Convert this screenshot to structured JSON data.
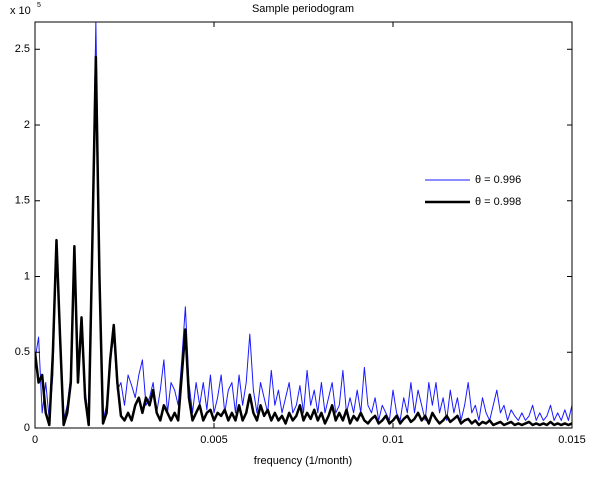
{
  "chart_data": {
    "type": "line",
    "title": "Sample periodogram",
    "y_multiplier": {
      "base": "x 10",
      "exponent": "5"
    },
    "xlabel": "frequency (1/month)",
    "xlim": [
      0,
      0.015
    ],
    "xticks": [
      0,
      0.005,
      0.01,
      0.015
    ],
    "ylim": [
      0,
      2.68
    ],
    "yticks": [
      0,
      0.5,
      1,
      1.5,
      2,
      2.5
    ],
    "grid": false,
    "legend": "right",
    "x": [
      0,
      0.0001,
      0.0002,
      0.0003,
      0.0004,
      0.0005,
      0.0006,
      0.0007,
      0.0008,
      0.0009,
      0.001,
      0.0011,
      0.0012,
      0.0013,
      0.0014,
      0.0015,
      0.0016,
      0.0017,
      0.0018,
      0.0019,
      0.002,
      0.0021,
      0.0022,
      0.0023,
      0.0024,
      0.0025,
      0.0026,
      0.0027,
      0.0028,
      0.0029,
      0.003,
      0.0031,
      0.0032,
      0.0033,
      0.0034,
      0.0035,
      0.0036,
      0.0037,
      0.0038,
      0.0039,
      0.004,
      0.0041,
      0.0042,
      0.0043,
      0.0044,
      0.0045,
      0.0046,
      0.0047,
      0.0048,
      0.0049,
      0.005,
      0.0051,
      0.0052,
      0.0053,
      0.0054,
      0.0055,
      0.0056,
      0.0057,
      0.0058,
      0.0059,
      0.006,
      0.0061,
      0.0062,
      0.0063,
      0.0064,
      0.0065,
      0.0066,
      0.0067,
      0.0068,
      0.0069,
      0.007,
      0.0071,
      0.0072,
      0.0073,
      0.0074,
      0.0075,
      0.0076,
      0.0077,
      0.0078,
      0.0079,
      0.008,
      0.0081,
      0.0082,
      0.0083,
      0.0084,
      0.0085,
      0.0086,
      0.0087,
      0.0088,
      0.0089,
      0.009,
      0.0091,
      0.0092,
      0.0093,
      0.0094,
      0.0095,
      0.0096,
      0.0097,
      0.0098,
      0.0099,
      0.01,
      0.0101,
      0.0102,
      0.0103,
      0.0104,
      0.0105,
      0.0106,
      0.0107,
      0.0108,
      0.0109,
      0.011,
      0.0111,
      0.0112,
      0.0113,
      0.0114,
      0.0115,
      0.0116,
      0.0117,
      0.0118,
      0.0119,
      0.012,
      0.0121,
      0.0122,
      0.0123,
      0.0124,
      0.0125,
      0.0126,
      0.0127,
      0.0128,
      0.0129,
      0.013,
      0.0131,
      0.0132,
      0.0133,
      0.0134,
      0.0135,
      0.0136,
      0.0137,
      0.0138,
      0.0139,
      0.014,
      0.0141,
      0.0142,
      0.0143,
      0.0144,
      0.0145,
      0.0146,
      0.0147,
      0.0148,
      0.0149,
      0.015
    ],
    "series": [
      {
        "name": "θ = 0.996",
        "color": "#1a1aff",
        "width": 1,
        "values": [
          0.45,
          0.6,
          0.1,
          0.3,
          0.05,
          0.35,
          1.2,
          0.55,
          0.05,
          0.15,
          0.35,
          1.15,
          0.35,
          0.7,
          0.25,
          0.05,
          1.3,
          2.68,
          1.1,
          0.05,
          0.15,
          0.45,
          0.6,
          0.25,
          0.3,
          0.15,
          0.35,
          0.28,
          0.2,
          0.35,
          0.45,
          0.15,
          0.2,
          0.3,
          0.1,
          0.25,
          0.45,
          0.1,
          0.3,
          0.25,
          0.15,
          0.45,
          0.8,
          0.3,
          0.1,
          0.3,
          0.15,
          0.3,
          0.12,
          0.35,
          0.1,
          0.2,
          0.35,
          0.1,
          0.25,
          0.3,
          0.1,
          0.35,
          0.15,
          0.3,
          0.62,
          0.25,
          0.1,
          0.3,
          0.2,
          0.1,
          0.38,
          0.15,
          0.25,
          0.1,
          0.2,
          0.3,
          0.1,
          0.15,
          0.28,
          0.1,
          0.38,
          0.15,
          0.25,
          0.1,
          0.3,
          0.1,
          0.2,
          0.3,
          0.1,
          0.15,
          0.38,
          0.1,
          0.2,
          0.1,
          0.25,
          0.1,
          0.4,
          0.15,
          0.1,
          0.2,
          0.05,
          0.15,
          0.1,
          0.05,
          0.25,
          0.1,
          0.05,
          0.2,
          0.1,
          0.3,
          0.1,
          0.25,
          0.15,
          0.05,
          0.3,
          0.15,
          0.3,
          0.1,
          0.2,
          0.05,
          0.25,
          0.1,
          0.2,
          0.05,
          0.15,
          0.3,
          0.1,
          0.15,
          0.05,
          0.2,
          0.1,
          0.05,
          0.15,
          0.25,
          0.1,
          0.15,
          0.05,
          0.12,
          0.08,
          0.05,
          0.1,
          0.05,
          0.08,
          0.15,
          0.05,
          0.1,
          0.05,
          0.08,
          0.15,
          0.05,
          0.1,
          0.05,
          0.12,
          0.05,
          0.15
        ]
      },
      {
        "name": "θ = 0.998",
        "color": "#000000",
        "width": 2.5,
        "values": [
          0.5,
          0.3,
          0.35,
          0.1,
          0.02,
          0.5,
          1.24,
          0.6,
          0.02,
          0.1,
          0.3,
          1.2,
          0.3,
          0.73,
          0.2,
          0.02,
          1.2,
          2.45,
          1.0,
          0.03,
          0.1,
          0.45,
          0.68,
          0.3,
          0.08,
          0.05,
          0.1,
          0.05,
          0.15,
          0.2,
          0.1,
          0.2,
          0.15,
          0.25,
          0.1,
          0.05,
          0.15,
          0.1,
          0.05,
          0.1,
          0.05,
          0.35,
          0.65,
          0.2,
          0.05,
          0.1,
          0.15,
          0.05,
          0.1,
          0.12,
          0.05,
          0.1,
          0.08,
          0.12,
          0.05,
          0.1,
          0.05,
          0.15,
          0.05,
          0.1,
          0.22,
          0.1,
          0.05,
          0.15,
          0.08,
          0.12,
          0.05,
          0.1,
          0.05,
          0.08,
          0.03,
          0.1,
          0.05,
          0.08,
          0.15,
          0.05,
          0.1,
          0.06,
          0.12,
          0.05,
          0.1,
          0.03,
          0.08,
          0.15,
          0.05,
          0.1,
          0.05,
          0.12,
          0.03,
          0.08,
          0.05,
          0.1,
          0.05,
          0.03,
          0.06,
          0.08,
          0.03,
          0.05,
          0.08,
          0.03,
          0.05,
          0.08,
          0.03,
          0.06,
          0.08,
          0.04,
          0.06,
          0.1,
          0.05,
          0.08,
          0.03,
          0.1,
          0.06,
          0.03,
          0.05,
          0.08,
          0.04,
          0.06,
          0.08,
          0.03,
          0.05,
          0.06,
          0.03,
          0.05,
          0.02,
          0.04,
          0.03,
          0.05,
          0.02,
          0.03,
          0.04,
          0.02,
          0.03,
          0.04,
          0.02,
          0.03,
          0.02,
          0.03,
          0.04,
          0.02,
          0.03,
          0.02,
          0.03,
          0.02,
          0.04,
          0.02,
          0.03,
          0.02,
          0.03,
          0.02,
          0.03
        ]
      }
    ]
  }
}
